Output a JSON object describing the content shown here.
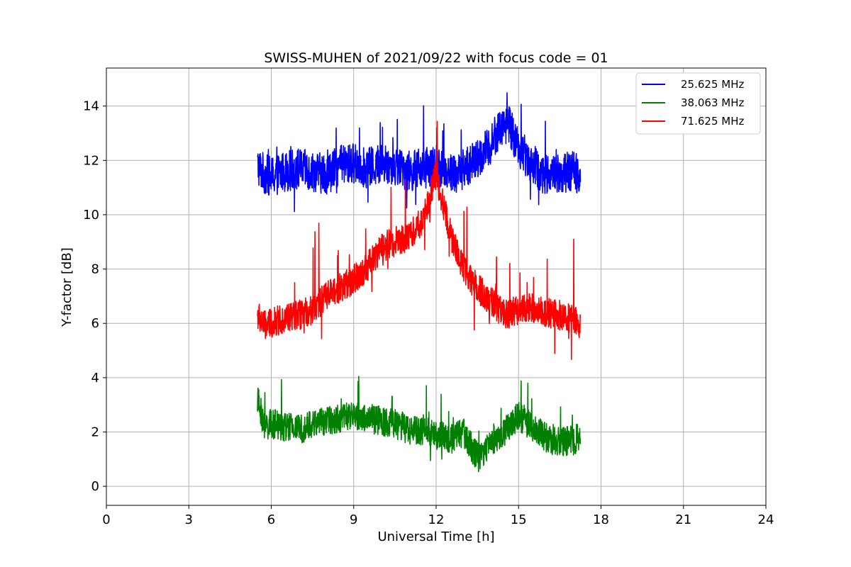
{
  "chart_data": {
    "type": "line",
    "title": "SWISS-MUHEN of 2021/09/22 with focus code = 01",
    "xlabel": "Universal Time [h]",
    "ylabel": "Y-factor [dB]",
    "xlim": [
      0,
      24
    ],
    "ylim": [
      -0.7,
      15.4
    ],
    "xticks": [
      0,
      3,
      6,
      9,
      12,
      15,
      18,
      21,
      24
    ],
    "yticks": [
      0,
      2,
      4,
      6,
      8,
      10,
      12,
      14
    ],
    "grid": true,
    "legend_position": "top-right",
    "series": [
      {
        "name": "25.625 MHz",
        "color": "#0000ff",
        "x": [
          5.5,
          5.75,
          6.0,
          6.5,
          7.0,
          7.5,
          8.0,
          8.5,
          9.0,
          9.5,
          10.0,
          10.5,
          11.0,
          11.5,
          12.0,
          12.5,
          12.8,
          13.1,
          13.5,
          14.0,
          14.3,
          14.6,
          15.0,
          15.4,
          15.8,
          16.5,
          17.0,
          17.25
        ],
        "y": [
          11.8,
          11.5,
          11.4,
          11.6,
          11.7,
          11.6,
          11.5,
          11.8,
          11.9,
          11.7,
          11.9,
          11.8,
          11.6,
          11.7,
          11.8,
          11.6,
          11.5,
          11.8,
          12.0,
          12.6,
          13.2,
          13.4,
          12.5,
          12.0,
          11.5,
          11.5,
          11.6,
          11.5
        ]
      },
      {
        "name": "38.063 MHz",
        "color": "#008000",
        "x": [
          5.5,
          5.75,
          6.0,
          6.5,
          7.0,
          7.5,
          8.0,
          8.5,
          9.0,
          9.5,
          10.0,
          10.5,
          11.0,
          11.5,
          12.0,
          12.5,
          13.0,
          13.3,
          13.6,
          14.0,
          14.5,
          15.0,
          15.5,
          16.0,
          16.5,
          17.0,
          17.25
        ],
        "y": [
          3.2,
          2.2,
          2.3,
          2.2,
          2.1,
          2.3,
          2.4,
          2.5,
          2.6,
          2.5,
          2.4,
          2.3,
          2.1,
          2.0,
          1.9,
          1.8,
          2.0,
          1.4,
          1.0,
          1.7,
          2.0,
          2.6,
          2.2,
          1.8,
          1.6,
          1.7,
          1.8
        ]
      },
      {
        "name": "71.625 MHz",
        "color": "#ff0000",
        "x": [
          5.5,
          5.75,
          6.0,
          6.5,
          7.0,
          7.5,
          8.0,
          8.5,
          9.0,
          9.5,
          10.0,
          10.5,
          11.0,
          11.5,
          11.8,
          12.0,
          12.3,
          12.6,
          13.0,
          13.5,
          14.0,
          14.5,
          15.0,
          15.5,
          16.0,
          16.5,
          17.0,
          17.25
        ],
        "y": [
          6.3,
          5.9,
          6.0,
          6.2,
          6.3,
          6.5,
          7.0,
          7.3,
          7.6,
          8.1,
          8.8,
          9.0,
          9.2,
          9.8,
          10.8,
          11.5,
          10.2,
          9.0,
          8.0,
          7.3,
          6.8,
          6.3,
          6.5,
          6.6,
          6.4,
          6.3,
          6.1,
          6.0
        ]
      }
    ]
  }
}
